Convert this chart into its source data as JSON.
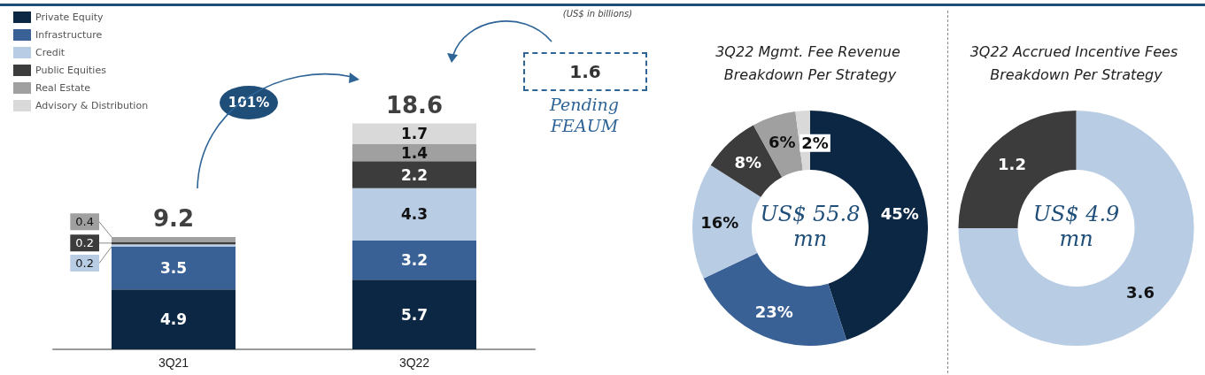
{
  "chart_data": [
    {
      "type": "bar",
      "stacked": true,
      "categories": [
        "3Q21",
        "3Q22"
      ],
      "series": [
        {
          "name": "Private Equity",
          "color": "#0b2744",
          "values": [
            4.9,
            5.7
          ]
        },
        {
          "name": "Infrastructure",
          "color": "#3a6195",
          "values": [
            3.5,
            3.2
          ]
        },
        {
          "name": "Credit",
          "color": "#b8cce4",
          "values": [
            0.2,
            4.3
          ]
        },
        {
          "name": "Public Equities",
          "color": "#3c3c3c",
          "values": [
            0.2,
            2.2
          ]
        },
        {
          "name": "Real Estate",
          "color": "#a0a0a0",
          "values": [
            0.4,
            1.4
          ]
        },
        {
          "name": "Advisory & Distribution",
          "color": "#d9d9d9",
          "values": [
            null,
            1.7
          ]
        }
      ],
      "data_labels": true,
      "totals": [
        "9.2",
        "18.6"
      ],
      "legend": "top left",
      "annotations": [
        "(US$ in billions)",
        "101%",
        "1.6",
        "Pending FEAUM"
      ]
    },
    {
      "type": "donut",
      "title": "3Q22 Mgmt. Fee Revenue Breakdown Per Strategy",
      "categories": [
        null,
        null,
        null,
        null,
        null,
        null
      ],
      "values": [
        45,
        23,
        16,
        8,
        6,
        2
      ],
      "colors": [
        "#0b2744",
        "#3a6195",
        "#b8cce4",
        "#3c3c3c",
        "#a0a0a0",
        "#d9d9d9"
      ],
      "value_labels": [
        "45%",
        "23%",
        "16%",
        "8%",
        "6%",
        "2%"
      ],
      "annotations": [
        "US$ 55.8 mn"
      ]
    },
    {
      "type": "donut",
      "title": "3Q22 Accrued Incentive Fees Breakdown Per Strategy",
      "categories": [
        null,
        null
      ],
      "values": [
        3.6,
        1.2
      ],
      "colors": [
        "#b8cce4",
        "#3c3c3c"
      ],
      "data_labels": true,
      "annotations": [
        "US$ 4.9 mn"
      ]
    }
  ]
}
